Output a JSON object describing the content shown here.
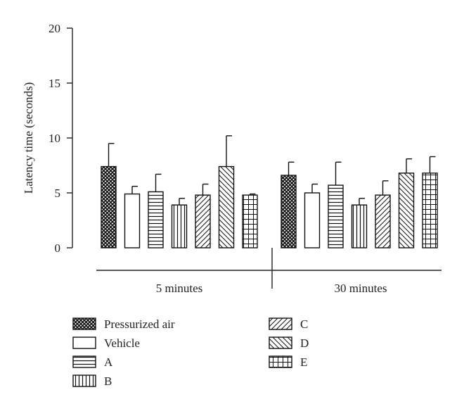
{
  "chart_data": {
    "type": "bar",
    "ylabel": "Latency time (seconds)",
    "ylim": [
      0,
      20
    ],
    "yticks": [
      0,
      5,
      10,
      15,
      20
    ],
    "groups": [
      "5 minutes",
      "30 minutes"
    ],
    "series": [
      {
        "name": "Pressurized air",
        "pattern": "crosshatch",
        "values": [
          7.4,
          6.6
        ],
        "errors": [
          2.1,
          1.2
        ]
      },
      {
        "name": "Vehicle",
        "pattern": "blank",
        "values": [
          4.9,
          5.0
        ],
        "errors": [
          0.7,
          0.8
        ]
      },
      {
        "name": "A",
        "pattern": "horizontal",
        "values": [
          5.1,
          5.7
        ],
        "errors": [
          1.6,
          2.1
        ]
      },
      {
        "name": "B",
        "pattern": "vertical",
        "values": [
          3.9,
          3.9
        ],
        "errors": [
          0.6,
          0.6
        ]
      },
      {
        "name": "C",
        "pattern": "diag-up",
        "values": [
          4.8,
          4.8
        ],
        "errors": [
          1.0,
          1.3
        ]
      },
      {
        "name": "D",
        "pattern": "diag-down",
        "values": [
          7.4,
          6.8
        ],
        "errors": [
          2.8,
          1.3
        ]
      },
      {
        "name": "E",
        "pattern": "grid",
        "values": [
          4.8,
          6.8
        ],
        "errors": [
          0.1,
          1.5
        ]
      }
    ],
    "colors": {
      "bar_stroke": "#111111",
      "axis": "#222222"
    }
  }
}
